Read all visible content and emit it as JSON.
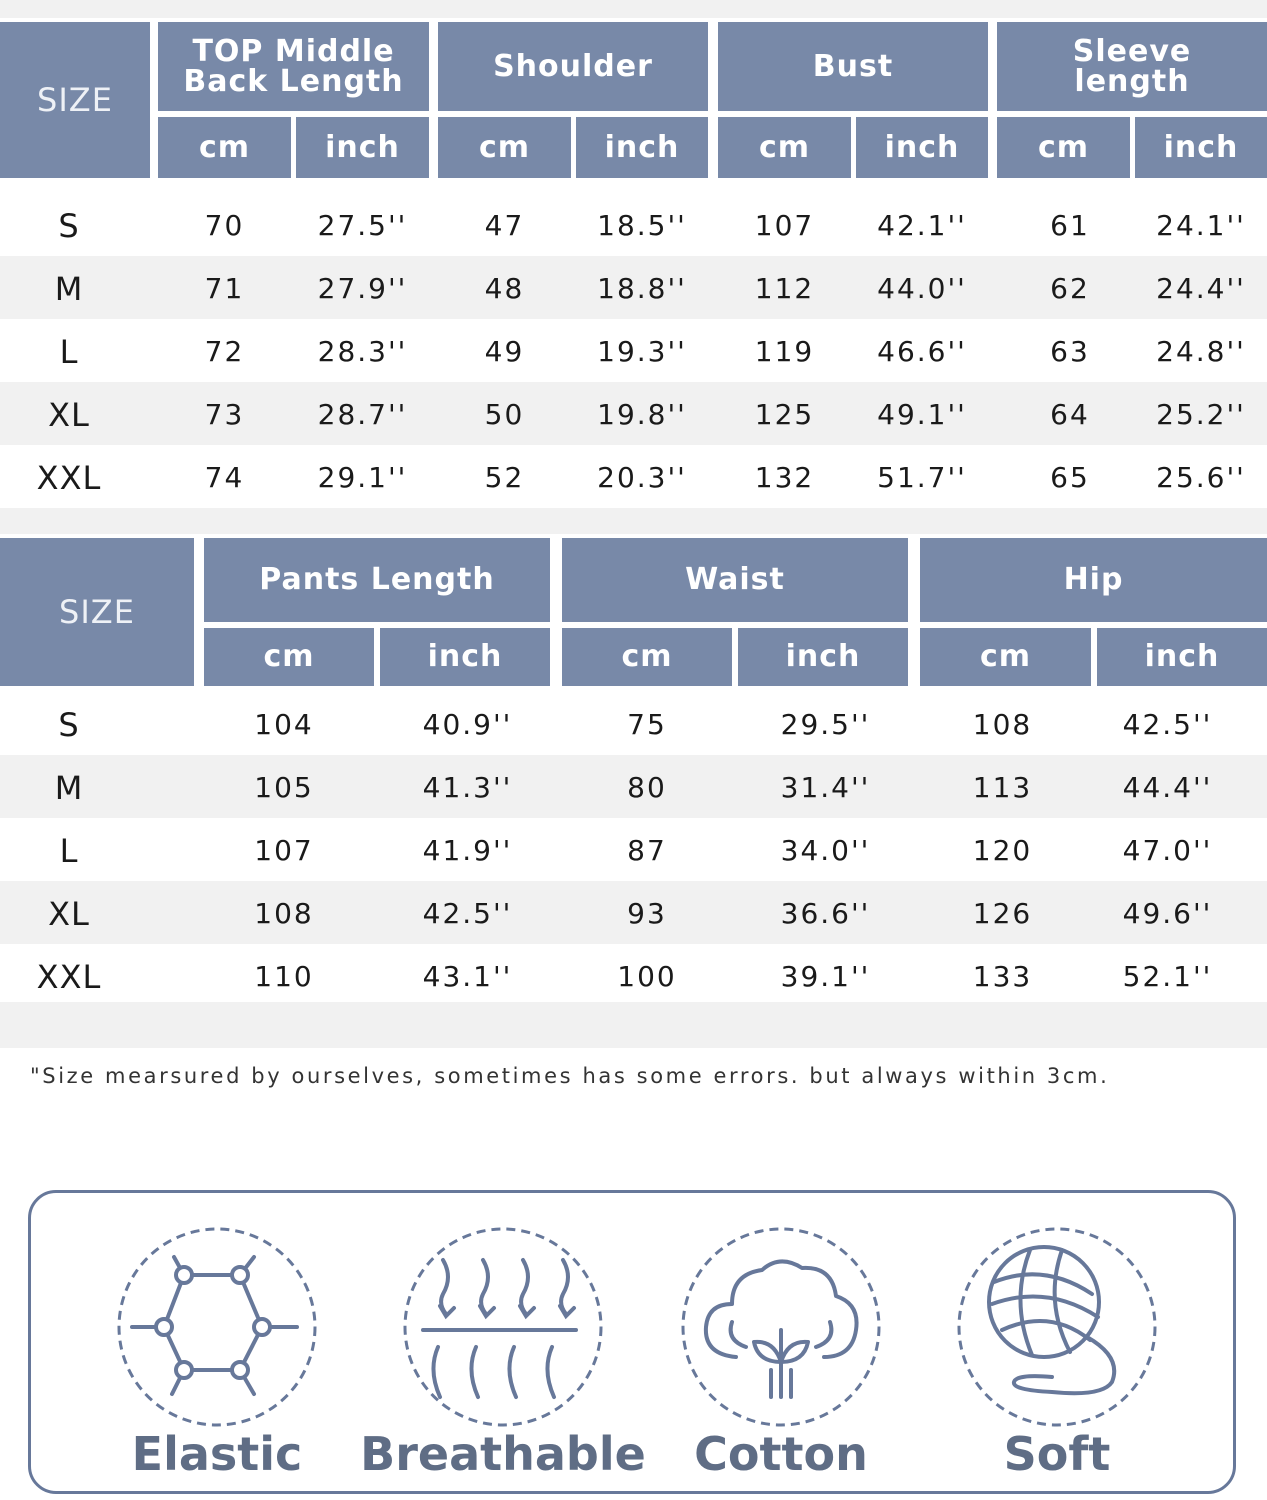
{
  "top_table": {
    "size_header": "SIZE",
    "columns": [
      {
        "title": [
          "TOP Middle",
          "Back Length"
        ],
        "units": [
          "cm",
          "inch"
        ]
      },
      {
        "title": [
          "Shoulder"
        ],
        "units": [
          "cm",
          "inch"
        ]
      },
      {
        "title": [
          "Bust"
        ],
        "units": [
          "cm",
          "inch"
        ]
      },
      {
        "title": [
          "Sleeve",
          "length"
        ],
        "units": [
          "cm",
          "inch"
        ]
      }
    ],
    "rows": [
      {
        "size": "S",
        "values": [
          "70",
          "27.5''",
          "47",
          "18.5''",
          "107",
          "42.1''",
          "61",
          "24.1''"
        ]
      },
      {
        "size": "M",
        "values": [
          "71",
          "27.9''",
          "48",
          "18.8''",
          "112",
          "44.0''",
          "62",
          "24.4''"
        ]
      },
      {
        "size": "L",
        "values": [
          "72",
          "28.3''",
          "49",
          "19.3''",
          "119",
          "46.6''",
          "63",
          "24.8''"
        ]
      },
      {
        "size": "XL",
        "values": [
          "73",
          "28.7''",
          "50",
          "19.8''",
          "125",
          "49.1''",
          "64",
          "25.2''"
        ]
      },
      {
        "size": "XXL",
        "values": [
          "74",
          "29.1''",
          "52",
          "20.3''",
          "132",
          "51.7''",
          "65",
          "25.6''"
        ]
      }
    ]
  },
  "bottom_table": {
    "size_header": "SIZE",
    "columns": [
      {
        "title": [
          "Pants Length"
        ],
        "units": [
          "cm",
          "inch"
        ]
      },
      {
        "title": [
          "Waist"
        ],
        "units": [
          "cm",
          "inch"
        ]
      },
      {
        "title": [
          "Hip"
        ],
        "units": [
          "cm",
          "inch"
        ]
      }
    ],
    "rows": [
      {
        "size": "S",
        "values": [
          "104",
          "40.9''",
          "75",
          "29.5''",
          "108",
          "42.5''"
        ]
      },
      {
        "size": "M",
        "values": [
          "105",
          "41.3''",
          "80",
          "31.4''",
          "113",
          "44.4''"
        ]
      },
      {
        "size": "L",
        "values": [
          "107",
          "41.9''",
          "87",
          "34.0''",
          "120",
          "47.0''"
        ]
      },
      {
        "size": "XL",
        "values": [
          "108",
          "42.5''",
          "93",
          "36.6''",
          "126",
          "49.6''"
        ]
      },
      {
        "size": "XXL",
        "values": [
          "110",
          "43.1''",
          "100",
          "39.1''",
          "133",
          "52.1''"
        ]
      }
    ]
  },
  "note": "\"Size mearsured by ourselves, sometimes has some errors. but always within 3cm.",
  "features": [
    {
      "label": "Elastic",
      "icon": "hexagon-network-icon"
    },
    {
      "label": "Breathable",
      "icon": "airflow-fabric-icon"
    },
    {
      "label": "Cotton",
      "icon": "cotton-flower-icon"
    },
    {
      "label": "Soft",
      "icon": "yarn-ball-icon"
    }
  ],
  "colors": {
    "header": "#7889a8",
    "stripe": "#f1f1f1",
    "panel_border": "#67789a",
    "label": "#5f6d85"
  }
}
